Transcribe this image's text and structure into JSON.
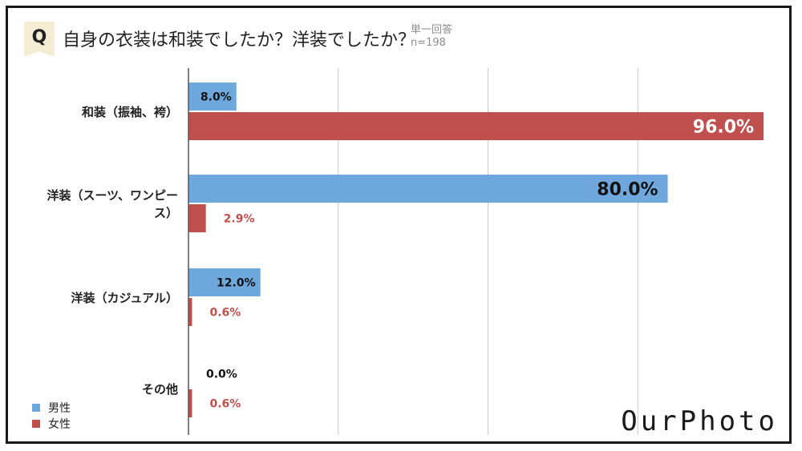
{
  "question": {
    "badge": "Q",
    "text": "自身の衣装は和装でしたか？洋装でしたか？",
    "answer_type": "単一回答",
    "sample": "n=198"
  },
  "brand": "OurPhoto",
  "colors": {
    "male": "#6fa8dc",
    "female": "#c0504d",
    "grid": "#c8c8c8"
  },
  "chart_data": {
    "type": "bar",
    "orientation": "horizontal",
    "categories": [
      [
        "和装（振袖、袴）"
      ],
      [
        "洋装（スーツ、ワンピー",
        "ス）"
      ],
      [
        "洋装（カジュアル）"
      ],
      [
        "その他"
      ]
    ],
    "series": [
      {
        "name": "男性",
        "values": [
          8.0,
          80.0,
          12.0,
          0.0
        ],
        "labels": [
          "8.0%",
          "80.0%",
          "12.0%",
          "0.0%"
        ]
      },
      {
        "name": "女性",
        "values": [
          96.0,
          2.9,
          0.6,
          0.6
        ],
        "labels": [
          "96.0%",
          "2.9%",
          "0.6%",
          "0.6%"
        ]
      }
    ],
    "xlim": [
      0,
      100
    ],
    "gridlines": [
      0,
      25,
      50,
      75
    ],
    "grid": true,
    "legend": "bottom-left"
  }
}
